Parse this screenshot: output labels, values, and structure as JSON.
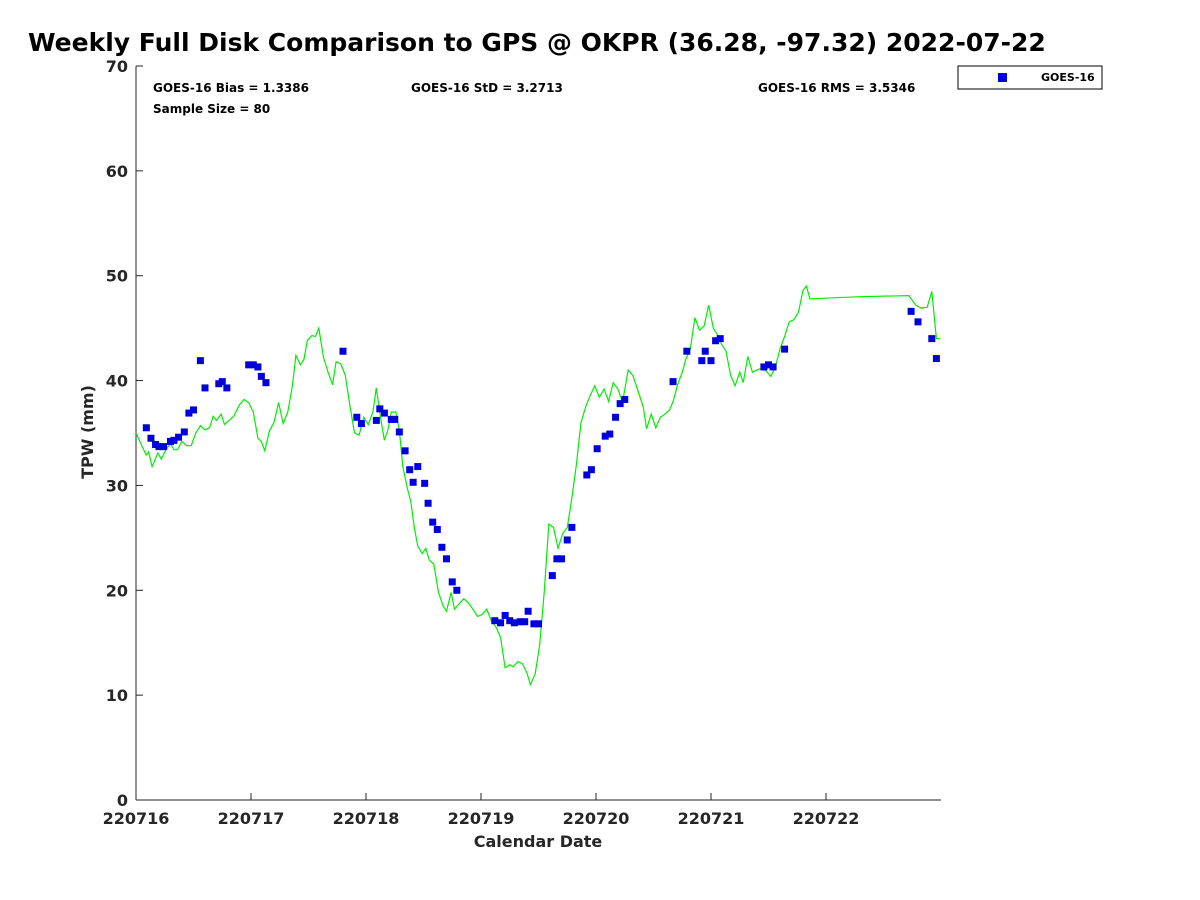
{
  "chart_data": {
    "type": "scatter",
    "title": "Weekly Full Disk Comparison to GPS @ OKPR (36.28, -97.32) 2022-07-22",
    "xlabel": "Calendar Date",
    "ylabel": "TPW (mm)",
    "xlim": [
      220716,
      220723
    ],
    "ylim": [
      0,
      70
    ],
    "x_ticks": [
      {
        "value": 220716,
        "label": "220716"
      },
      {
        "value": 220717,
        "label": "220717"
      },
      {
        "value": 220718,
        "label": "220718"
      },
      {
        "value": 220719,
        "label": "220719"
      },
      {
        "value": 220720,
        "label": "220720"
      },
      {
        "value": 220721,
        "label": "220721"
      },
      {
        "value": 220722,
        "label": "220722"
      }
    ],
    "y_ticks": [
      0,
      10,
      20,
      30,
      40,
      50,
      60,
      70
    ],
    "grid": false,
    "legend_position": "outside-top-right",
    "stats": {
      "bias": "GOES-16 Bias = 1.3386",
      "std": "GOES-16 StD = 3.2713",
      "rms": "GOES-16 RMS = 3.5346",
      "sample": "Sample Size = 80"
    },
    "series": [
      {
        "name": "GOES-16",
        "kind": "scatter",
        "color": "#0000dd",
        "points": [
          [
            220716.09,
            35.5
          ],
          [
            220716.13,
            34.5
          ],
          [
            220716.17,
            33.9
          ],
          [
            220716.2,
            33.7
          ],
          [
            220716.24,
            33.7
          ],
          [
            220716.3,
            34.2
          ],
          [
            220716.33,
            34.3
          ],
          [
            220716.37,
            34.6
          ],
          [
            220716.42,
            35.1
          ],
          [
            220716.46,
            36.9
          ],
          [
            220716.5,
            37.2
          ],
          [
            220716.56,
            41.9
          ],
          [
            220716.6,
            39.3
          ],
          [
            220716.72,
            39.7
          ],
          [
            220716.75,
            39.9
          ],
          [
            220716.79,
            39.3
          ],
          [
            220716.98,
            41.5
          ],
          [
            220717.02,
            41.5
          ],
          [
            220717.06,
            41.3
          ],
          [
            220717.09,
            40.4
          ],
          [
            220717.13,
            39.8
          ],
          [
            220717.8,
            42.8
          ],
          [
            220717.92,
            36.5
          ],
          [
            220717.96,
            35.9
          ],
          [
            220718.09,
            36.2
          ],
          [
            220718.12,
            37.3
          ],
          [
            220718.16,
            36.9
          ],
          [
            220718.22,
            36.3
          ],
          [
            220718.25,
            36.3
          ],
          [
            220718.29,
            35.1
          ],
          [
            220718.34,
            33.3
          ],
          [
            220718.38,
            31.5
          ],
          [
            220718.41,
            30.3
          ],
          [
            220718.45,
            31.8
          ],
          [
            220718.51,
            30.2
          ],
          [
            220718.54,
            28.3
          ],
          [
            220718.58,
            26.5
          ],
          [
            220718.62,
            25.8
          ],
          [
            220718.66,
            24.1
          ],
          [
            220718.7,
            23.0
          ],
          [
            220718.75,
            20.8
          ],
          [
            220718.79,
            20.0
          ],
          [
            220719.12,
            17.1
          ],
          [
            220719.17,
            16.9
          ],
          [
            220719.21,
            17.6
          ],
          [
            220719.25,
            17.1
          ],
          [
            220719.29,
            16.9
          ],
          [
            220719.34,
            17.0
          ],
          [
            220719.38,
            17.0
          ],
          [
            220719.41,
            18.0
          ],
          [
            220719.46,
            16.8
          ],
          [
            220719.5,
            16.8
          ],
          [
            220719.62,
            21.4
          ],
          [
            220719.66,
            23.0
          ],
          [
            220719.7,
            23.0
          ],
          [
            220719.75,
            24.8
          ],
          [
            220719.79,
            26.0
          ],
          [
            220719.92,
            31.0
          ],
          [
            220719.96,
            31.5
          ],
          [
            220720.01,
            33.5
          ],
          [
            220720.08,
            34.7
          ],
          [
            220720.12,
            34.9
          ],
          [
            220720.17,
            36.5
          ],
          [
            220720.21,
            37.8
          ],
          [
            220720.25,
            38.2
          ],
          [
            220720.67,
            39.9
          ],
          [
            220720.79,
            42.8
          ],
          [
            220720.92,
            41.9
          ],
          [
            220720.95,
            42.8
          ],
          [
            220721.0,
            41.9
          ],
          [
            220721.04,
            43.8
          ],
          [
            220721.08,
            44.0
          ],
          [
            220721.46,
            41.3
          ],
          [
            220721.5,
            41.5
          ],
          [
            220721.54,
            41.3
          ],
          [
            220721.64,
            43.0
          ],
          [
            220722.74,
            46.6
          ],
          [
            220722.8,
            45.6
          ],
          [
            220722.92,
            44.0
          ],
          [
            220722.96,
            42.1
          ]
        ]
      },
      {
        "name": "GPS",
        "kind": "line",
        "color": "#00ee00",
        "points": [
          [
            220716.0,
            35.0
          ],
          [
            220716.05,
            33.8
          ],
          [
            220716.09,
            32.9
          ],
          [
            220716.11,
            33.2
          ],
          [
            220716.14,
            31.8
          ],
          [
            220716.19,
            33.1
          ],
          [
            220716.22,
            32.5
          ],
          [
            220716.26,
            33.4
          ],
          [
            220716.3,
            34.0
          ],
          [
            220716.33,
            33.4
          ],
          [
            220716.36,
            33.4
          ],
          [
            220716.4,
            34.2
          ],
          [
            220716.44,
            33.8
          ],
          [
            220716.48,
            33.8
          ],
          [
            220716.52,
            35.0
          ],
          [
            220716.56,
            35.7
          ],
          [
            220716.6,
            35.3
          ],
          [
            220716.64,
            35.5
          ],
          [
            220716.67,
            36.6
          ],
          [
            220716.7,
            36.2
          ],
          [
            220716.74,
            36.8
          ],
          [
            220716.77,
            35.8
          ],
          [
            220716.81,
            36.2
          ],
          [
            220716.85,
            36.6
          ],
          [
            220716.9,
            37.7
          ],
          [
            220716.94,
            38.2
          ],
          [
            220716.98,
            37.9
          ],
          [
            220717.02,
            37.0
          ],
          [
            220717.06,
            34.5
          ],
          [
            220717.09,
            34.2
          ],
          [
            220717.12,
            33.3
          ],
          [
            220717.16,
            35.2
          ],
          [
            220717.2,
            36.0
          ],
          [
            220717.24,
            37.9
          ],
          [
            220717.28,
            35.9
          ],
          [
            220717.32,
            37.0
          ],
          [
            220717.36,
            39.5
          ],
          [
            220717.39,
            42.4
          ],
          [
            220717.43,
            41.5
          ],
          [
            220717.46,
            42.0
          ],
          [
            220717.49,
            43.8
          ],
          [
            220717.53,
            44.3
          ],
          [
            220717.56,
            44.2
          ],
          [
            220717.59,
            45.0
          ],
          [
            220717.63,
            42.2
          ],
          [
            220717.67,
            40.8
          ],
          [
            220717.71,
            39.6
          ],
          [
            220717.74,
            41.8
          ],
          [
            220717.78,
            41.6
          ],
          [
            220717.82,
            40.5
          ],
          [
            220717.86,
            37.6
          ],
          [
            220717.9,
            35.0
          ],
          [
            220717.94,
            34.8
          ],
          [
            220717.98,
            36.5
          ],
          [
            220718.02,
            35.8
          ],
          [
            220718.06,
            37.0
          ],
          [
            220718.09,
            39.3
          ],
          [
            220718.13,
            36.2
          ],
          [
            220718.16,
            34.3
          ],
          [
            220718.19,
            35.3
          ],
          [
            220718.22,
            37.0
          ],
          [
            220718.26,
            37.0
          ],
          [
            220718.29,
            35.2
          ],
          [
            220718.32,
            31.8
          ],
          [
            220718.36,
            29.7
          ],
          [
            220718.39,
            28.4
          ],
          [
            220718.42,
            26.0
          ],
          [
            220718.45,
            24.2
          ],
          [
            220718.49,
            23.5
          ],
          [
            220718.52,
            24.0
          ],
          [
            220718.55,
            22.9
          ],
          [
            220718.59,
            22.5
          ],
          [
            220718.63,
            19.8
          ],
          [
            220718.67,
            18.5
          ],
          [
            220718.7,
            18.0
          ],
          [
            220718.74,
            19.8
          ],
          [
            220718.77,
            18.2
          ],
          [
            220718.81,
            18.7
          ],
          [
            220718.85,
            19.2
          ],
          [
            220718.89,
            18.8
          ],
          [
            220718.93,
            18.2
          ],
          [
            220718.97,
            17.5
          ],
          [
            220719.01,
            17.7
          ],
          [
            220719.05,
            18.2
          ],
          [
            220719.09,
            17.1
          ],
          [
            220719.13,
            16.5
          ],
          [
            220719.17,
            15.5
          ],
          [
            220719.21,
            12.6
          ],
          [
            220719.25,
            12.9
          ],
          [
            220719.28,
            12.7
          ],
          [
            220719.32,
            13.2
          ],
          [
            220719.36,
            13.0
          ],
          [
            220719.4,
            12.1
          ],
          [
            220719.43,
            11.0
          ],
          [
            220719.47,
            12.0
          ],
          [
            220719.51,
            14.8
          ],
          [
            220719.55,
            19.8
          ],
          [
            220719.59,
            26.3
          ],
          [
            220719.63,
            26.0
          ],
          [
            220719.67,
            24.0
          ],
          [
            220719.71,
            25.4
          ],
          [
            220719.75,
            26.0
          ],
          [
            220719.79,
            28.8
          ],
          [
            220719.83,
            32.0
          ],
          [
            220719.87,
            36.0
          ],
          [
            220719.91,
            37.5
          ],
          [
            220719.95,
            38.6
          ],
          [
            220719.99,
            39.5
          ],
          [
            220720.03,
            38.4
          ],
          [
            220720.07,
            39.2
          ],
          [
            220720.11,
            38.0
          ],
          [
            220720.15,
            39.8
          ],
          [
            220720.19,
            39.2
          ],
          [
            220720.23,
            37.9
          ],
          [
            220720.28,
            41.0
          ],
          [
            220720.32,
            40.5
          ],
          [
            220720.36,
            39.2
          ],
          [
            220720.41,
            37.5
          ],
          [
            220720.44,
            35.4
          ],
          [
            220720.48,
            36.8
          ],
          [
            220720.52,
            35.5
          ],
          [
            220720.56,
            36.5
          ],
          [
            220720.6,
            36.8
          ],
          [
            220720.64,
            37.2
          ],
          [
            220720.67,
            38.0
          ],
          [
            220720.71,
            39.6
          ],
          [
            220720.75,
            40.8
          ],
          [
            220720.78,
            42.0
          ],
          [
            220720.82,
            43.0
          ],
          [
            220720.86,
            46.0
          ],
          [
            220720.9,
            44.8
          ],
          [
            220720.94,
            45.2
          ],
          [
            220720.98,
            47.2
          ],
          [
            220721.02,
            45.0
          ],
          [
            220721.06,
            44.3
          ],
          [
            220721.09,
            43.5
          ],
          [
            220721.13,
            42.8
          ],
          [
            220721.17,
            40.5
          ],
          [
            220721.21,
            39.5
          ],
          [
            220721.25,
            40.8
          ],
          [
            220721.28,
            39.8
          ],
          [
            220721.32,
            42.3
          ],
          [
            220721.36,
            40.8
          ],
          [
            220721.4,
            41.0
          ],
          [
            220721.44,
            41.2
          ],
          [
            220721.48,
            40.9
          ],
          [
            220721.52,
            40.4
          ],
          [
            220721.56,
            41.3
          ],
          [
            220721.6,
            43.0
          ],
          [
            220721.64,
            44.2
          ],
          [
            220721.68,
            45.6
          ],
          [
            220721.72,
            45.8
          ],
          [
            220721.76,
            46.5
          ],
          [
            220721.8,
            48.6
          ],
          [
            220721.83,
            49.0
          ],
          [
            220721.86,
            47.8
          ],
          [
            220722.3,
            48.0
          ],
          [
            220722.72,
            48.1
          ],
          [
            220722.78,
            47.2
          ],
          [
            220722.83,
            46.9
          ],
          [
            220722.88,
            47.0
          ],
          [
            220722.92,
            48.5
          ],
          [
            220722.96,
            44.0
          ],
          [
            220722.99,
            44.0
          ]
        ]
      }
    ]
  }
}
